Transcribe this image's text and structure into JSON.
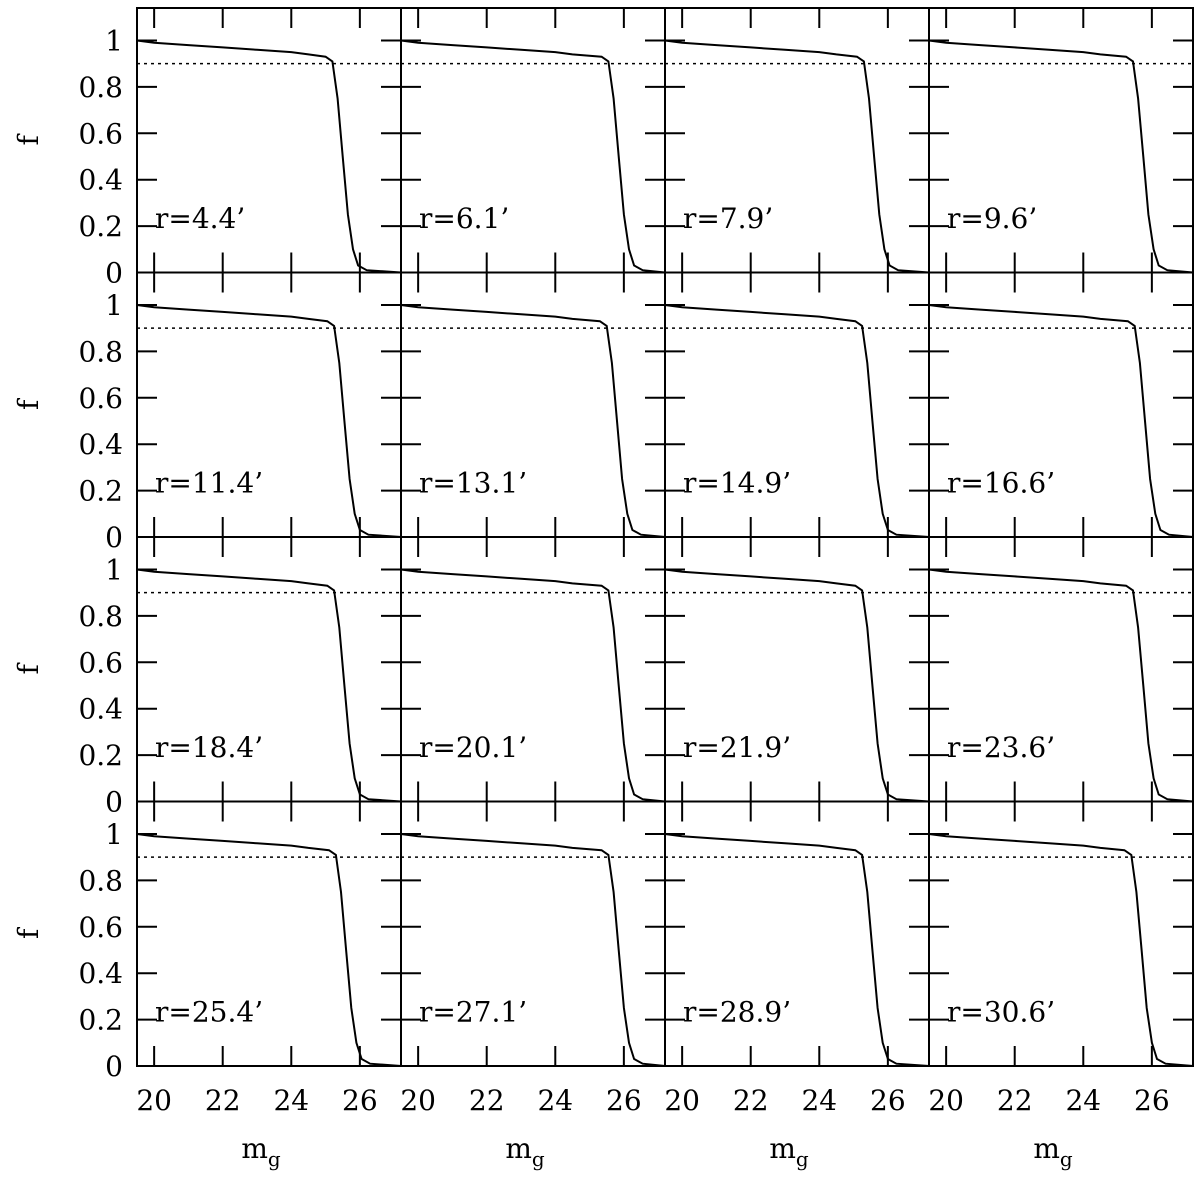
{
  "chart_data": [
    {
      "type": "line",
      "annotation": "r=4.4’",
      "ylabel": "f",
      "x": [
        19.5,
        20,
        21,
        22,
        23,
        24,
        24.5,
        25.0,
        25.2,
        25.35,
        25.5,
        25.65,
        25.8,
        25.95,
        26.2,
        27.2
      ],
      "values": [
        1.0,
        0.99,
        0.98,
        0.97,
        0.96,
        0.95,
        0.94,
        0.93,
        0.91,
        0.75,
        0.5,
        0.25,
        0.1,
        0.03,
        0.01,
        0.0
      ],
      "hline": 0.9,
      "xlim": [
        19.5,
        27.2
      ],
      "ylim": [
        0,
        1.14
      ],
      "xticks": [
        20,
        22,
        24,
        26
      ],
      "yticks": [
        0,
        0.2,
        0.4,
        0.6,
        0.8,
        1
      ]
    },
    {
      "type": "line",
      "annotation": "r=6.1’",
      "x": [
        19.5,
        20,
        21,
        22,
        23,
        24,
        24.5,
        25.35,
        25.55,
        25.7,
        25.85,
        26.0,
        26.15,
        26.3,
        26.55,
        27.2
      ],
      "values": [
        1.0,
        0.99,
        0.98,
        0.97,
        0.96,
        0.95,
        0.94,
        0.93,
        0.91,
        0.75,
        0.5,
        0.25,
        0.1,
        0.03,
        0.01,
        0.0
      ],
      "hline": 0.9,
      "xlim": [
        19.5,
        27.2
      ],
      "ylim": [
        0,
        1.14
      ],
      "xticks": [
        20,
        22,
        24,
        26
      ],
      "yticks": [
        0,
        0.2,
        0.4,
        0.6,
        0.8,
        1
      ]
    },
    {
      "type": "line",
      "annotation": "r=7.9’",
      "x": [
        19.5,
        20,
        21,
        22,
        23,
        24,
        24.5,
        25.1,
        25.3,
        25.45,
        25.6,
        25.75,
        25.9,
        26.05,
        26.3,
        27.2
      ],
      "values": [
        1.0,
        0.99,
        0.98,
        0.97,
        0.96,
        0.95,
        0.94,
        0.93,
        0.91,
        0.75,
        0.5,
        0.25,
        0.1,
        0.03,
        0.01,
        0.0
      ],
      "hline": 0.9,
      "xlim": [
        19.5,
        27.2
      ],
      "ylim": [
        0,
        1.14
      ],
      "xticks": [
        20,
        22,
        24,
        26
      ],
      "yticks": [
        0,
        0.2,
        0.4,
        0.6,
        0.8,
        1
      ]
    },
    {
      "type": "line",
      "annotation": "r=9.6’",
      "x": [
        19.5,
        20,
        21,
        22,
        23,
        24,
        24.5,
        25.25,
        25.45,
        25.6,
        25.75,
        25.9,
        26.05,
        26.2,
        26.45,
        27.2
      ],
      "values": [
        1.0,
        0.99,
        0.98,
        0.97,
        0.96,
        0.95,
        0.94,
        0.93,
        0.91,
        0.75,
        0.5,
        0.25,
        0.1,
        0.03,
        0.01,
        0.0
      ],
      "hline": 0.9,
      "xlim": [
        19.5,
        27.2
      ],
      "ylim": [
        0,
        1.14
      ],
      "xticks": [
        20,
        22,
        24,
        26
      ],
      "yticks": [
        0,
        0.2,
        0.4,
        0.6,
        0.8,
        1
      ]
    },
    {
      "type": "line",
      "annotation": "r=11.4’",
      "ylabel": "f",
      "x": [
        19.5,
        20,
        21,
        22,
        23,
        24,
        24.5,
        25.05,
        25.25,
        25.4,
        25.55,
        25.7,
        25.85,
        26.0,
        26.25,
        27.2
      ],
      "values": [
        1.0,
        0.99,
        0.98,
        0.97,
        0.96,
        0.95,
        0.94,
        0.93,
        0.91,
        0.75,
        0.5,
        0.25,
        0.1,
        0.03,
        0.01,
        0.0
      ],
      "hline": 0.9,
      "xlim": [
        19.5,
        27.2
      ],
      "ylim": [
        0,
        1.14
      ],
      "xticks": [
        20,
        22,
        24,
        26
      ],
      "yticks": [
        0,
        0.2,
        0.4,
        0.6,
        0.8,
        1
      ]
    },
    {
      "type": "line",
      "annotation": "r=13.1’",
      "x": [
        19.5,
        20,
        21,
        22,
        23,
        24,
        24.5,
        25.3,
        25.5,
        25.65,
        25.8,
        25.95,
        26.1,
        26.25,
        26.5,
        27.2
      ],
      "values": [
        1.0,
        0.99,
        0.98,
        0.97,
        0.96,
        0.95,
        0.94,
        0.93,
        0.91,
        0.75,
        0.5,
        0.25,
        0.1,
        0.03,
        0.01,
        0.0
      ],
      "hline": 0.9,
      "xlim": [
        19.5,
        27.2
      ],
      "ylim": [
        0,
        1.14
      ],
      "xticks": [
        20,
        22,
        24,
        26
      ],
      "yticks": [
        0,
        0.2,
        0.4,
        0.6,
        0.8,
        1
      ]
    },
    {
      "type": "line",
      "annotation": "r=14.9’",
      "x": [
        19.5,
        20,
        21,
        22,
        23,
        24,
        24.5,
        25.05,
        25.25,
        25.4,
        25.55,
        25.7,
        25.85,
        26.0,
        26.25,
        27.2
      ],
      "values": [
        1.0,
        0.99,
        0.98,
        0.97,
        0.96,
        0.95,
        0.94,
        0.93,
        0.91,
        0.75,
        0.5,
        0.25,
        0.1,
        0.03,
        0.01,
        0.0
      ],
      "hline": 0.9,
      "xlim": [
        19.5,
        27.2
      ],
      "ylim": [
        0,
        1.14
      ],
      "xticks": [
        20,
        22,
        24,
        26
      ],
      "yticks": [
        0,
        0.2,
        0.4,
        0.6,
        0.8,
        1
      ]
    },
    {
      "type": "line",
      "annotation": "r=16.6’",
      "x": [
        19.5,
        20,
        21,
        22,
        23,
        24,
        24.5,
        25.3,
        25.5,
        25.65,
        25.8,
        25.95,
        26.1,
        26.25,
        26.5,
        27.2
      ],
      "values": [
        1.0,
        0.99,
        0.98,
        0.97,
        0.96,
        0.95,
        0.94,
        0.93,
        0.91,
        0.75,
        0.5,
        0.25,
        0.1,
        0.03,
        0.01,
        0.0
      ],
      "hline": 0.9,
      "xlim": [
        19.5,
        27.2
      ],
      "ylim": [
        0,
        1.14
      ],
      "xticks": [
        20,
        22,
        24,
        26
      ],
      "yticks": [
        0,
        0.2,
        0.4,
        0.6,
        0.8,
        1
      ]
    },
    {
      "type": "line",
      "annotation": "r=18.4’",
      "ylabel": "f",
      "x": [
        19.5,
        20,
        21,
        22,
        23,
        24,
        24.5,
        25.05,
        25.25,
        25.4,
        25.55,
        25.7,
        25.85,
        26.0,
        26.25,
        27.2
      ],
      "values": [
        1.0,
        0.99,
        0.98,
        0.97,
        0.96,
        0.95,
        0.94,
        0.93,
        0.91,
        0.75,
        0.5,
        0.25,
        0.1,
        0.03,
        0.01,
        0.0
      ],
      "hline": 0.9,
      "xlim": [
        19.5,
        27.2
      ],
      "ylim": [
        0,
        1.14
      ],
      "xticks": [
        20,
        22,
        24,
        26
      ],
      "yticks": [
        0,
        0.2,
        0.4,
        0.6,
        0.8,
        1
      ]
    },
    {
      "type": "line",
      "annotation": "r=20.1’",
      "x": [
        19.5,
        20,
        21,
        22,
        23,
        24,
        24.5,
        25.35,
        25.55,
        25.7,
        25.85,
        26.0,
        26.15,
        26.3,
        26.55,
        27.2
      ],
      "values": [
        1.0,
        0.99,
        0.98,
        0.97,
        0.96,
        0.95,
        0.94,
        0.93,
        0.91,
        0.75,
        0.5,
        0.25,
        0.1,
        0.03,
        0.01,
        0.0
      ],
      "hline": 0.9,
      "xlim": [
        19.5,
        27.2
      ],
      "ylim": [
        0,
        1.14
      ],
      "xticks": [
        20,
        22,
        24,
        26
      ],
      "yticks": [
        0,
        0.2,
        0.4,
        0.6,
        0.8,
        1
      ]
    },
    {
      "type": "line",
      "annotation": "r=21.9’",
      "x": [
        19.5,
        20,
        21,
        22,
        23,
        24,
        24.5,
        25.05,
        25.25,
        25.4,
        25.55,
        25.7,
        25.85,
        26.0,
        26.25,
        27.2
      ],
      "values": [
        1.0,
        0.99,
        0.98,
        0.97,
        0.96,
        0.95,
        0.94,
        0.93,
        0.91,
        0.75,
        0.5,
        0.25,
        0.1,
        0.03,
        0.01,
        0.0
      ],
      "hline": 0.9,
      "xlim": [
        19.5,
        27.2
      ],
      "ylim": [
        0,
        1.14
      ],
      "xticks": [
        20,
        22,
        24,
        26
      ],
      "yticks": [
        0,
        0.2,
        0.4,
        0.6,
        0.8,
        1
      ]
    },
    {
      "type": "line",
      "annotation": "r=23.6’",
      "x": [
        19.5,
        20,
        21,
        22,
        23,
        24,
        24.5,
        25.25,
        25.45,
        25.6,
        25.75,
        25.9,
        26.05,
        26.2,
        26.45,
        27.2
      ],
      "values": [
        1.0,
        0.99,
        0.98,
        0.97,
        0.96,
        0.95,
        0.94,
        0.93,
        0.91,
        0.75,
        0.5,
        0.25,
        0.1,
        0.03,
        0.01,
        0.0
      ],
      "hline": 0.9,
      "xlim": [
        19.5,
        27.2
      ],
      "ylim": [
        0,
        1.14
      ],
      "xticks": [
        20,
        22,
        24,
        26
      ],
      "yticks": [
        0,
        0.2,
        0.4,
        0.6,
        0.8,
        1
      ]
    },
    {
      "type": "line",
      "annotation": "r=25.4’",
      "ylabel": "f",
      "xlabel": "m",
      "xlabel_sub": "g",
      "x": [
        19.5,
        20,
        21,
        22,
        23,
        24,
        24.5,
        25.1,
        25.3,
        25.45,
        25.6,
        25.75,
        25.9,
        26.05,
        26.3,
        27.2
      ],
      "values": [
        1.0,
        0.99,
        0.98,
        0.97,
        0.96,
        0.95,
        0.94,
        0.93,
        0.91,
        0.75,
        0.5,
        0.25,
        0.1,
        0.03,
        0.01,
        0.0
      ],
      "hline": 0.9,
      "xlim": [
        19.5,
        27.2
      ],
      "ylim": [
        0,
        1.14
      ],
      "xticks": [
        20,
        22,
        24,
        26
      ],
      "yticks": [
        0,
        0.2,
        0.4,
        0.6,
        0.8,
        1
      ]
    },
    {
      "type": "line",
      "annotation": "r=27.1’",
      "xlabel": "m",
      "xlabel_sub": "g",
      "x": [
        19.5,
        20,
        21,
        22,
        23,
        24,
        24.5,
        25.35,
        25.55,
        25.7,
        25.85,
        26.0,
        26.15,
        26.3,
        26.55,
        27.2
      ],
      "values": [
        1.0,
        0.99,
        0.98,
        0.97,
        0.96,
        0.95,
        0.94,
        0.93,
        0.91,
        0.75,
        0.5,
        0.25,
        0.1,
        0.03,
        0.01,
        0.0
      ],
      "hline": 0.9,
      "xlim": [
        19.5,
        27.2
      ],
      "ylim": [
        0,
        1.14
      ],
      "xticks": [
        20,
        22,
        24,
        26
      ],
      "yticks": [
        0,
        0.2,
        0.4,
        0.6,
        0.8,
        1
      ]
    },
    {
      "type": "line",
      "annotation": "r=28.9’",
      "xlabel": "m",
      "xlabel_sub": "g",
      "x": [
        19.5,
        20,
        21,
        22,
        23,
        24,
        24.5,
        25.05,
        25.25,
        25.4,
        25.55,
        25.7,
        25.85,
        26.0,
        26.25,
        27.2
      ],
      "values": [
        1.0,
        0.99,
        0.98,
        0.97,
        0.96,
        0.95,
        0.94,
        0.93,
        0.91,
        0.75,
        0.5,
        0.25,
        0.1,
        0.03,
        0.01,
        0.0
      ],
      "hline": 0.9,
      "xlim": [
        19.5,
        27.2
      ],
      "ylim": [
        0,
        1.14
      ],
      "xticks": [
        20,
        22,
        24,
        26
      ],
      "yticks": [
        0,
        0.2,
        0.4,
        0.6,
        0.8,
        1
      ]
    },
    {
      "type": "line",
      "annotation": "r=30.6’",
      "xlabel": "m",
      "xlabel_sub": "g",
      "x": [
        19.5,
        20,
        21,
        22,
        23,
        24,
        24.5,
        25.2,
        25.4,
        25.55,
        25.7,
        25.85,
        26.0,
        26.15,
        26.4,
        27.2
      ],
      "values": [
        1.0,
        0.99,
        0.98,
        0.97,
        0.96,
        0.95,
        0.94,
        0.93,
        0.91,
        0.75,
        0.5,
        0.25,
        0.1,
        0.03,
        0.01,
        0.0
      ],
      "hline": 0.9,
      "xlim": [
        19.5,
        27.2
      ],
      "ylim": [
        0,
        1.14
      ],
      "xticks": [
        20,
        22,
        24,
        26
      ],
      "yticks": [
        0,
        0.2,
        0.4,
        0.6,
        0.8,
        1
      ]
    }
  ]
}
